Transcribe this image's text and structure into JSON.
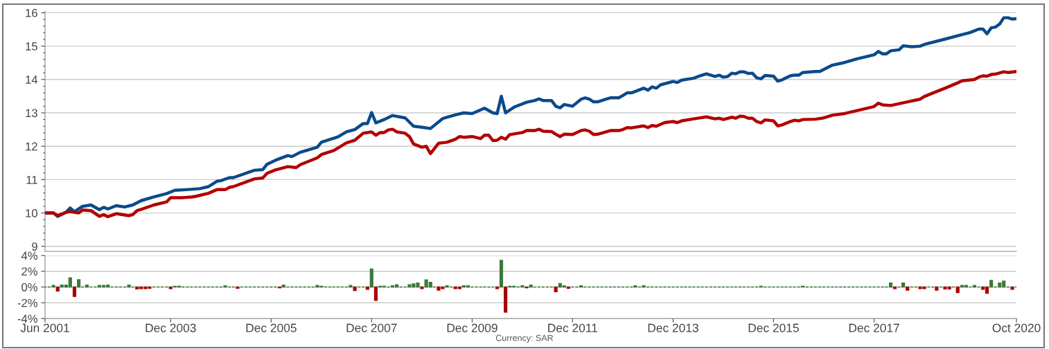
{
  "chart_data": [
    {
      "type": "line",
      "xlim": [
        "2001-06-01",
        "2020-10-01"
      ],
      "ylim": [
        8.85,
        16.05
      ],
      "yticks": [
        9,
        10,
        11,
        12,
        13,
        14,
        15,
        16
      ],
      "grid": "y",
      "tick_labels": "y",
      "line_style": "solid",
      "marker": "none",
      "series": [
        {
          "color": "#0b4a8b",
          "x": [
            "2001-06",
            "2001-08",
            "2001-09",
            "2001-11",
            "2001-12",
            "2002-01",
            "2002-03",
            "2002-05",
            "2002-07",
            "2002-08",
            "2002-09",
            "2002-11",
            "2003-01",
            "2003-03",
            "2003-05",
            "2003-08",
            "2003-11",
            "2004-01",
            "2004-05",
            "2004-07",
            "2004-09",
            "2004-11",
            "2004-12",
            "2005-02",
            "2005-03",
            "2005-08",
            "2005-10",
            "2005-11",
            "2006-01",
            "2006-04",
            "2006-05",
            "2006-07",
            "2006-11",
            "2006-12",
            "2007-04",
            "2007-06",
            "2007-08",
            "2007-10",
            "2007-11",
            "2007-12",
            "2008-01",
            "2008-03",
            "2008-05",
            "2008-08",
            "2008-10",
            "2008-12",
            "2009-02",
            "2009-05",
            "2009-08",
            "2009-10",
            "2009-12",
            "2010-03",
            "2010-05",
            "2010-06",
            "2010-07",
            "2010-08",
            "2010-10",
            "2011-01",
            "2011-03",
            "2011-04",
            "2011-05",
            "2011-07",
            "2011-08",
            "2011-09",
            "2011-10",
            "2011-12",
            "2012-02",
            "2012-03",
            "2012-04",
            "2012-05",
            "2012-06",
            "2012-08",
            "2012-09",
            "2012-11",
            "2012-12",
            "2013-01",
            "2013-02",
            "2013-05",
            "2013-06",
            "2013-07",
            "2013-08",
            "2013-09",
            "2013-12",
            "2014-01",
            "2014-02",
            "2014-05",
            "2014-06",
            "2014-08",
            "2014-10",
            "2014-11",
            "2014-12",
            "2015-01",
            "2015-02",
            "2015-03",
            "2015-04",
            "2015-05",
            "2015-06",
            "2015-07",
            "2015-08",
            "2015-09",
            "2015-10",
            "2015-12",
            "2016-01",
            "2016-02",
            "2016-04",
            "2016-05",
            "2016-06",
            "2016-07",
            "2016-10",
            "2016-11",
            "2017-02",
            "2017-05",
            "2017-08",
            "2017-12",
            "2018-01",
            "2018-02",
            "2018-03",
            "2018-04",
            "2018-06",
            "2018-07",
            "2018-09",
            "2018-11",
            "2018-12",
            "2019-05",
            "2019-08",
            "2019-11",
            "2020-01",
            "2020-02",
            "2020-03",
            "2020-04",
            "2020-05",
            "2020-06",
            "2020-07",
            "2020-08",
            "2020-09",
            "2020-10"
          ],
          "values": [
            10.0,
            10.0,
            9.9,
            10.02,
            10.15,
            10.04,
            10.2,
            10.24,
            10.1,
            10.17,
            10.12,
            10.22,
            10.18,
            10.24,
            10.37,
            10.48,
            10.58,
            10.68,
            10.71,
            10.73,
            10.79,
            10.95,
            10.97,
            11.06,
            11.06,
            11.28,
            11.3,
            11.46,
            11.58,
            11.72,
            11.69,
            11.82,
            11.97,
            12.12,
            12.28,
            12.43,
            12.5,
            12.68,
            12.68,
            13.01,
            12.7,
            12.8,
            12.92,
            12.85,
            12.6,
            12.57,
            12.53,
            12.83,
            12.94,
            13.0,
            12.98,
            13.14,
            13.0,
            12.98,
            13.5,
            13.0,
            13.17,
            13.32,
            13.37,
            13.42,
            13.37,
            13.37,
            13.2,
            13.15,
            13.25,
            13.2,
            13.41,
            13.45,
            13.41,
            13.33,
            13.33,
            13.41,
            13.45,
            13.45,
            13.52,
            13.6,
            13.6,
            13.74,
            13.68,
            13.78,
            13.74,
            13.84,
            13.94,
            13.91,
            13.98,
            14.04,
            14.09,
            14.17,
            14.09,
            14.13,
            14.07,
            14.09,
            14.19,
            14.17,
            14.23,
            14.23,
            14.18,
            14.19,
            14.05,
            14.02,
            14.12,
            14.1,
            13.95,
            13.99,
            14.11,
            14.13,
            14.13,
            14.21,
            14.24,
            14.24,
            14.43,
            14.51,
            14.62,
            14.74,
            14.84,
            14.77,
            14.77,
            14.86,
            14.89,
            15.01,
            14.98,
            15.0,
            15.05,
            15.21,
            15.31,
            15.41,
            15.51,
            15.51,
            15.37,
            15.55,
            15.57,
            15.66,
            15.85,
            15.85,
            15.81,
            15.82
          ]
        },
        {
          "color": "#b30000",
          "x": [
            "2001-06",
            "2001-08",
            "2001-09",
            "2001-11",
            "2001-12",
            "2002-02",
            "2002-03",
            "2002-05",
            "2002-07",
            "2002-08",
            "2002-09",
            "2002-11",
            "2003-02",
            "2003-03",
            "2003-04",
            "2003-05",
            "2003-08",
            "2003-11",
            "2003-12",
            "2004-03",
            "2004-05",
            "2004-06",
            "2004-09",
            "2004-11",
            "2005-01",
            "2005-02",
            "2005-03",
            "2005-08",
            "2005-10",
            "2005-11",
            "2006-01",
            "2006-04",
            "2006-06",
            "2006-07",
            "2006-11",
            "2006-12",
            "2007-03",
            "2007-06",
            "2007-08",
            "2007-10",
            "2007-12",
            "2008-01",
            "2008-02",
            "2008-03",
            "2008-04",
            "2008-05",
            "2008-06",
            "2008-08",
            "2008-09",
            "2008-10",
            "2008-12",
            "2009-01",
            "2009-02",
            "2009-04",
            "2009-06",
            "2009-08",
            "2009-09",
            "2009-10",
            "2009-12",
            "2010-02",
            "2010-03",
            "2010-04",
            "2010-05",
            "2010-06",
            "2010-07",
            "2010-08",
            "2010-09",
            "2010-12",
            "2011-01",
            "2011-03",
            "2011-04",
            "2011-05",
            "2011-07",
            "2011-08",
            "2011-09",
            "2011-10",
            "2011-12",
            "2012-02",
            "2012-03",
            "2012-04",
            "2012-05",
            "2012-06",
            "2012-08",
            "2012-09",
            "2012-11",
            "2012-12",
            "2013-01",
            "2013-02",
            "2013-05",
            "2013-06",
            "2013-07",
            "2013-08",
            "2013-10",
            "2013-12",
            "2014-01",
            "2014-02",
            "2014-05",
            "2014-08",
            "2014-10",
            "2014-11",
            "2014-12",
            "2015-02",
            "2015-03",
            "2015-04",
            "2015-05",
            "2015-06",
            "2015-07",
            "2015-08",
            "2015-09",
            "2015-10",
            "2015-12",
            "2016-01",
            "2016-02",
            "2016-04",
            "2016-05",
            "2016-06",
            "2016-07",
            "2016-10",
            "2016-12",
            "2017-02",
            "2017-05",
            "2017-08",
            "2017-12",
            "2018-01",
            "2018-02",
            "2018-04",
            "2018-08",
            "2018-11",
            "2018-12",
            "2019-03",
            "2019-05",
            "2019-08",
            "2019-09",
            "2019-12",
            "2020-01",
            "2020-02",
            "2020-03",
            "2020-04",
            "2020-05",
            "2020-07",
            "2020-08",
            "2020-10"
          ],
          "values": [
            10.0,
            10.0,
            9.92,
            10.02,
            10.04,
            10.0,
            10.09,
            10.07,
            9.9,
            9.95,
            9.89,
            9.98,
            9.92,
            9.95,
            10.07,
            10.11,
            10.24,
            10.33,
            10.46,
            10.46,
            10.48,
            10.5,
            10.59,
            10.7,
            10.7,
            10.77,
            10.79,
            11.02,
            11.05,
            11.19,
            11.29,
            11.39,
            11.36,
            11.45,
            11.65,
            11.75,
            11.87,
            12.1,
            12.18,
            12.39,
            12.43,
            12.33,
            12.41,
            12.41,
            12.49,
            12.51,
            12.43,
            12.39,
            12.29,
            12.07,
            11.97,
            12.0,
            11.78,
            12.09,
            12.12,
            12.21,
            12.29,
            12.27,
            12.29,
            12.23,
            12.33,
            12.33,
            12.17,
            12.18,
            12.27,
            12.21,
            12.35,
            12.41,
            12.47,
            12.47,
            12.51,
            12.45,
            12.44,
            12.36,
            12.29,
            12.36,
            12.35,
            12.47,
            12.49,
            12.45,
            12.35,
            12.36,
            12.43,
            12.47,
            12.47,
            12.5,
            12.56,
            12.55,
            12.61,
            12.56,
            12.62,
            12.6,
            12.71,
            12.74,
            12.71,
            12.76,
            12.82,
            12.88,
            12.82,
            12.84,
            12.8,
            12.87,
            12.84,
            12.9,
            12.89,
            12.84,
            12.84,
            12.74,
            12.7,
            12.79,
            12.76,
            12.61,
            12.64,
            12.74,
            12.78,
            12.76,
            12.8,
            12.81,
            12.85,
            12.93,
            12.98,
            13.07,
            13.19,
            13.29,
            13.24,
            13.22,
            13.33,
            13.41,
            13.49,
            13.64,
            13.74,
            13.9,
            13.96,
            14.0,
            14.07,
            14.11,
            14.1,
            14.15,
            14.16,
            14.23,
            14.21,
            14.24
          ]
        }
      ]
    },
    {
      "type": "bar",
      "xlim": [
        "2001-06-01",
        "2020-10-01"
      ],
      "ylim": [
        -4,
        4
      ],
      "yticks": [
        {
          "value": -4,
          "label": "-4%"
        },
        {
          "value": -2,
          "label": "-2%"
        },
        {
          "value": 0,
          "label": "0%"
        },
        {
          "value": 2,
          "label": "2%"
        },
        {
          "value": 4,
          "label": "4%"
        }
      ],
      "xticks": [
        {
          "value": "2001-06-01",
          "label": "Jun 2001"
        },
        {
          "value": "2003-12-01",
          "label": "Dec 2003"
        },
        {
          "value": "2005-12-01",
          "label": "Dec 2005"
        },
        {
          "value": "2007-12-01",
          "label": "Dec 2007"
        },
        {
          "value": "2009-12-01",
          "label": "Dec 2009"
        },
        {
          "value": "2011-12-01",
          "label": "Dec 2011"
        },
        {
          "value": "2013-12-01",
          "label": "Dec 2013"
        },
        {
          "value": "2015-12-01",
          "label": "Dec 2015"
        },
        {
          "value": "2017-12-01",
          "label": "Dec 2017"
        },
        {
          "value": "2020-10-01",
          "label": "Oct 2020"
        }
      ],
      "grid": "y",
      "annotations": [
        "Currency: SAR"
      ],
      "x": [
        "2001-06",
        "2001-07",
        "2001-08",
        "2001-09",
        "2001-10",
        "2001-11",
        "2001-12",
        "2002-01",
        "2002-02",
        "2002-03",
        "2002-04",
        "2002-05",
        "2002-06",
        "2002-07",
        "2002-08",
        "2002-09",
        "2002-10",
        "2002-11",
        "2002-12",
        "2003-01",
        "2003-02",
        "2003-03",
        "2003-04",
        "2003-05",
        "2003-06",
        "2003-07",
        "2003-08",
        "2003-09",
        "2003-10",
        "2003-11",
        "2003-12",
        "2004-01",
        "2004-02",
        "2004-03",
        "2004-04",
        "2004-05",
        "2004-06",
        "2004-07",
        "2004-08",
        "2004-09",
        "2004-10",
        "2004-11",
        "2004-12",
        "2005-01",
        "2005-02",
        "2005-03",
        "2005-04",
        "2005-05",
        "2005-06",
        "2005-07",
        "2005-08",
        "2005-09",
        "2005-10",
        "2005-11",
        "2005-12",
        "2006-01",
        "2006-02",
        "2006-03",
        "2006-04",
        "2006-05",
        "2006-06",
        "2006-07",
        "2006-08",
        "2006-09",
        "2006-10",
        "2006-11",
        "2006-12",
        "2007-01",
        "2007-02",
        "2007-03",
        "2007-04",
        "2007-05",
        "2007-06",
        "2007-07",
        "2007-08",
        "2007-09",
        "2007-10",
        "2007-11",
        "2007-12",
        "2008-01",
        "2008-02",
        "2008-03",
        "2008-04",
        "2008-05",
        "2008-06",
        "2008-07",
        "2008-08",
        "2008-09",
        "2008-10",
        "2008-11",
        "2008-12",
        "2009-01",
        "2009-02",
        "2009-03",
        "2009-04",
        "2009-05",
        "2009-06",
        "2009-07",
        "2009-08",
        "2009-09",
        "2009-10",
        "2009-11",
        "2009-12",
        "2010-01",
        "2010-02",
        "2010-03",
        "2010-04",
        "2010-05",
        "2010-06",
        "2010-07",
        "2010-08",
        "2010-09",
        "2010-10",
        "2010-11",
        "2010-12",
        "2011-01",
        "2011-02",
        "2011-03",
        "2011-04",
        "2011-05",
        "2011-06",
        "2011-07",
        "2011-08",
        "2011-09",
        "2011-10",
        "2011-11",
        "2011-12",
        "2012-01",
        "2012-02",
        "2012-03",
        "2012-04",
        "2012-05",
        "2012-06",
        "2012-07",
        "2012-08",
        "2012-09",
        "2012-10",
        "2012-11",
        "2012-12",
        "2013-01",
        "2013-02",
        "2013-03",
        "2013-04",
        "2013-05",
        "2013-06",
        "2013-07",
        "2013-08",
        "2013-09",
        "2013-10",
        "2013-11",
        "2013-12",
        "2014-01",
        "2014-02",
        "2014-03",
        "2014-04",
        "2014-05",
        "2014-06",
        "2014-07",
        "2014-08",
        "2014-09",
        "2014-10",
        "2014-11",
        "2014-12",
        "2015-01",
        "2015-02",
        "2015-03",
        "2015-04",
        "2015-05",
        "2015-06",
        "2015-07",
        "2015-08",
        "2015-09",
        "2015-10",
        "2015-11",
        "2015-12",
        "2016-01",
        "2016-02",
        "2016-03",
        "2016-04",
        "2016-05",
        "2016-06",
        "2016-07",
        "2016-08",
        "2016-09",
        "2016-10",
        "2016-11",
        "2016-12",
        "2017-01",
        "2017-02",
        "2017-03",
        "2017-04",
        "2017-05",
        "2017-06",
        "2017-07",
        "2017-08",
        "2017-09",
        "2017-10",
        "2017-11",
        "2017-12",
        "2018-01",
        "2018-02",
        "2018-03",
        "2018-04",
        "2018-05",
        "2018-06",
        "2018-07",
        "2018-08",
        "2018-09",
        "2018-10",
        "2018-11",
        "2018-12",
        "2019-01",
        "2019-02",
        "2019-03",
        "2019-04",
        "2019-05",
        "2019-06",
        "2019-07",
        "2019-08",
        "2019-09",
        "2019-10",
        "2019-11",
        "2019-12",
        "2020-01",
        "2020-02",
        "2020-03",
        "2020-04",
        "2020-05",
        "2020-06",
        "2020-07",
        "2020-08",
        "2020-09",
        "2020-10"
      ],
      "series": [
        {
          "color": "#3b7a3b",
          "values": [
            0,
            0,
            0.2,
            null,
            0.25,
            0.25,
            1.16,
            null,
            0.93,
            0,
            0.25,
            0,
            0,
            0.2,
            0.2,
            0.25,
            0,
            0,
            0,
            0,
            0.25,
            0,
            null,
            null,
            null,
            null,
            0,
            0,
            0,
            0,
            null,
            0.1,
            0.1,
            0,
            0,
            0,
            0,
            0,
            0,
            0,
            0,
            0,
            0,
            0.15,
            0,
            0,
            null,
            0,
            0,
            0,
            0,
            0,
            0,
            0,
            0,
            0,
            null,
            0.25,
            0,
            0,
            0,
            0,
            0,
            0,
            0,
            0.2,
            0.1,
            0,
            0,
            0,
            0,
            0,
            0,
            0.2,
            null,
            0,
            0,
            null,
            2.3,
            null,
            0.1,
            0.1,
            0,
            0.15,
            0.3,
            0,
            0,
            0.3,
            0.4,
            0.5,
            null,
            0.9,
            0.6,
            0,
            null,
            null,
            0.15,
            0,
            null,
            null,
            0.15,
            0.15,
            0,
            0,
            0,
            0,
            0,
            0,
            null,
            3.4,
            null,
            0.1,
            0.1,
            0,
            0.15,
            null,
            0.25,
            0,
            0,
            0,
            0,
            0,
            null,
            0.45,
            0.15,
            null,
            0,
            0,
            0.15,
            0,
            0,
            0,
            0,
            0,
            0,
            0,
            0,
            0,
            0,
            0,
            0,
            0.15,
            0,
            0.15,
            0,
            0,
            0,
            0,
            0,
            0,
            0,
            0,
            0,
            0,
            0,
            0,
            0,
            0,
            0,
            0,
            0,
            0,
            0,
            0,
            0,
            0,
            0,
            0,
            0,
            0,
            0,
            0.1,
            0,
            0,
            0,
            0,
            0,
            0,
            0,
            0,
            0,
            0.1,
            0,
            0,
            0,
            0,
            0,
            0,
            0,
            0,
            0,
            0,
            0,
            0,
            0,
            0,
            0,
            0,
            0,
            0,
            0,
            0,
            0.5,
            null,
            0,
            0.5,
            null,
            0,
            0,
            null,
            null,
            0,
            0,
            null,
            0,
            null,
            null,
            0,
            null,
            0.2,
            0.2,
            0,
            0.2,
            0,
            null,
            null,
            0.85,
            0,
            0.5,
            0.75,
            0,
            null,
            0
          ]
        },
        {
          "color": "#a80000",
          "x": [
            "2001-09",
            "2002-01",
            "2003-04",
            "2003-05",
            "2003-06",
            "2003-07",
            "2003-12",
            "2005-04",
            "2006-02",
            "2007-08",
            "2007-11",
            "2008-01",
            "2008-12",
            "2009-04",
            "2009-05",
            "2009-08",
            "2009-09",
            "2010-06",
            "2010-08",
            "2011-01",
            "2011-08",
            "2011-11",
            "2018-05",
            "2018-08",
            "2018-11",
            "2018-12",
            "2019-03",
            "2019-05",
            "2019-06",
            "2019-08",
            "2020-02",
            "2020-03",
            "2020-09"
          ],
          "values": [
            -0.5,
            -1.2,
            -0.25,
            -0.2,
            -0.2,
            -0.15,
            -0.2,
            -0.15,
            -0.1,
            -0.45,
            -0.3,
            -1.7,
            -0.2,
            -0.4,
            -0.2,
            -0.2,
            -0.2,
            -0.2,
            -3.2,
            -0.1,
            -0.6,
            -0.15,
            -0.2,
            -0.4,
            -0.2,
            -0.2,
            -0.4,
            -0.25,
            -0.25,
            -0.7,
            -0.3,
            -0.8,
            -0.3
          ]
        }
      ]
    }
  ]
}
